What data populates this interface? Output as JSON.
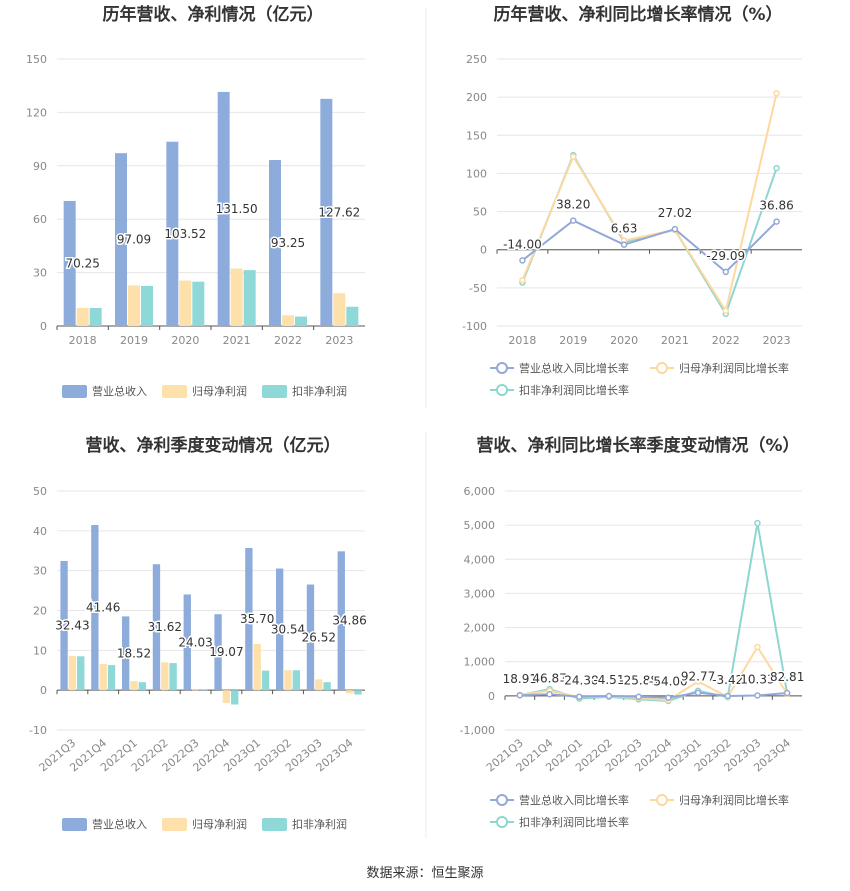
{
  "colors": {
    "revenue": "#8eacdb",
    "net_profit": "#fde0aa",
    "deducted_profit": "#8ed8d8",
    "revenue_line": "#93a8d8",
    "net_profit_line": "#fdd9a0",
    "deducted_line": "#8ed6d2",
    "grid": "#e6e6e6",
    "axis": "#555555"
  },
  "source": "数据来源：恒生聚源",
  "chart_data": [
    {
      "type": "bar",
      "title": "历年营收、净利情况（亿元）",
      "categories": [
        "2018",
        "2019",
        "2020",
        "2021",
        "2022",
        "2023"
      ],
      "ylim": [
        0,
        150
      ],
      "yticks": [
        "0",
        "30",
        "60",
        "90",
        "120",
        "150"
      ],
      "series": [
        {
          "name": "营业总收入",
          "values": [
            70.25,
            97.09,
            103.52,
            131.5,
            93.25,
            127.62
          ],
          "labels": [
            "70.25",
            "97.09",
            "103.52",
            "131.50",
            "93.25",
            "127.62"
          ]
        },
        {
          "name": "归母净利润",
          "values": [
            10.2,
            22.8,
            25.5,
            32.3,
            6.0,
            18.4
          ]
        },
        {
          "name": "扣非净利润",
          "values": [
            10.1,
            22.5,
            24.9,
            31.4,
            5.3,
            10.8
          ]
        }
      ],
      "legend": "bottom"
    },
    {
      "type": "line",
      "title": "历年营收、净利同比增长率情况（%）",
      "categories": [
        "2018",
        "2019",
        "2020",
        "2021",
        "2022",
        "2023"
      ],
      "ylim": [
        -100,
        250
      ],
      "yticks": [
        "-100",
        "-50",
        "0",
        "50",
        "100",
        "150",
        "200",
        "250"
      ],
      "series": [
        {
          "name": "营业总收入同比增长率",
          "values": [
            -14.0,
            38.2,
            6.63,
            27.02,
            -29.09,
            36.86
          ],
          "labels": [
            "-14.00",
            "38.20",
            "6.63",
            "27.02",
            "-29.09",
            "36.86"
          ]
        },
        {
          "name": "归母净利润同比增长率",
          "values": [
            -40,
            122,
            12,
            26,
            -80,
            205
          ]
        },
        {
          "name": "扣非净利润同比增长率",
          "values": [
            -43,
            124,
            10,
            26,
            -84,
            107
          ]
        }
      ],
      "legend": "bottom"
    },
    {
      "type": "bar",
      "title": "营收、净利季度变动情况（亿元）",
      "categories": [
        "2021Q3",
        "2021Q4",
        "2022Q1",
        "2022Q2",
        "2022Q3",
        "2022Q4",
        "2023Q1",
        "2023Q2",
        "2023Q3",
        "2023Q4"
      ],
      "ylim": [
        -10,
        50
      ],
      "yticks": [
        "-10",
        "0",
        "10",
        "20",
        "30",
        "40",
        "50"
      ],
      "series": [
        {
          "name": "营业总收入",
          "values": [
            32.43,
            41.46,
            18.52,
            31.62,
            24.03,
            19.07,
            35.7,
            30.54,
            26.52,
            34.86
          ],
          "labels": [
            "32.43",
            "41.46",
            "18.52",
            "31.62",
            "24.03",
            "19.07",
            "35.70",
            "30.54",
            "26.52",
            "34.86"
          ]
        },
        {
          "name": "归母净利润",
          "values": [
            8.6,
            6.6,
            2.3,
            7.0,
            0.1,
            -3.2,
            11.6,
            5.0,
            2.7,
            -0.8
          ]
        },
        {
          "name": "扣非净利润",
          "values": [
            8.5,
            6.3,
            2.0,
            6.8,
            0.1,
            -3.6,
            4.9,
            5.0,
            2.0,
            -1.1
          ]
        }
      ],
      "legend": "bottom"
    },
    {
      "type": "line",
      "title": "营收、净利同比增长率季度变动情况（%）",
      "categories": [
        "2021Q3",
        "2021Q4",
        "2022Q1",
        "2022Q2",
        "2022Q3",
        "2022Q4",
        "2023Q1",
        "2023Q2",
        "2023Q3",
        "2023Q4"
      ],
      "ylim": [
        -1000,
        6000
      ],
      "yticks": [
        "-1,000",
        "0",
        "1,000",
        "2,000",
        "3,000",
        "4,000",
        "5,000",
        "6,000"
      ],
      "series": [
        {
          "name": "营业总收入同比增长率",
          "values": [
            18.91,
            46.87,
            -24.38,
            -4.51,
            -25.88,
            -54.0,
            92.77,
            -3.42,
            10.33,
            82.81
          ],
          "labels": [
            "18.91",
            "46.87",
            "-24.38",
            "-4.51",
            "-25.88",
            "-54.00",
            "92.77",
            "-3.42",
            "10.33",
            "82.81"
          ]
        },
        {
          "name": "归母净利润同比增长率",
          "values": [
            30,
            150,
            -40,
            -10,
            -60,
            -120,
            420,
            -30,
            1430,
            60
          ]
        },
        {
          "name": "扣非净利润同比增长率",
          "values": [
            20,
            200,
            -80,
            -30,
            -100,
            -150,
            150,
            -40,
            5060,
            70
          ]
        }
      ],
      "legend": "bottom"
    }
  ]
}
